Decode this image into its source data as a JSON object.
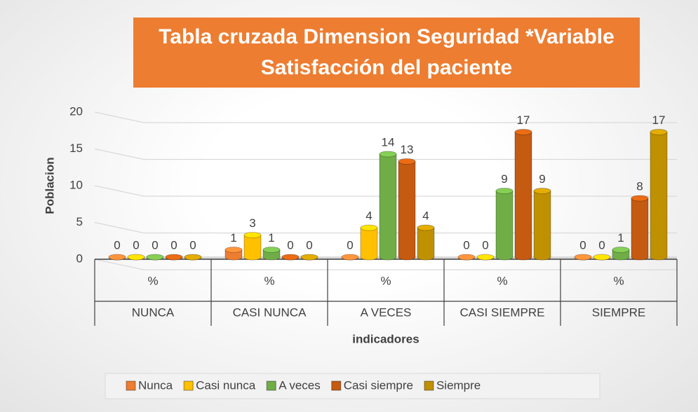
{
  "chart_data": {
    "type": "bar3d",
    "title": "Tabla cruzada Dimension Seguridad *Variable Satisfacción del paciente",
    "categories": [
      "NUNCA",
      "CASI NUNCA",
      "A VECES",
      "CASI SIEMPRE",
      "SIEMPRE"
    ],
    "subcategories": [
      "%",
      "%",
      "%",
      "%",
      "%"
    ],
    "x_label": "indicadores",
    "y_label": "Poblacion",
    "ylim": [
      0,
      20
    ],
    "yticks": [
      0,
      5,
      10,
      15,
      20
    ],
    "grid": true,
    "legend": "bottom",
    "series": [
      {
        "name": "Nunca",
        "color": "#ed7d31",
        "values": [
          0,
          1,
          0,
          0,
          0
        ]
      },
      {
        "name": "Casi nunca",
        "color": "#ffc000",
        "values": [
          0,
          3,
          4,
          0,
          0
        ]
      },
      {
        "name": "A veces",
        "color": "#70ad47",
        "values": [
          0,
          1,
          14,
          9,
          1
        ]
      },
      {
        "name": "Casi siempre",
        "color": "#c55a11",
        "values": [
          0,
          0,
          13,
          17,
          8
        ]
      },
      {
        "name": "Siempre",
        "color": "#bf9000",
        "values": [
          0,
          0,
          4,
          9,
          17
        ]
      }
    ]
  }
}
